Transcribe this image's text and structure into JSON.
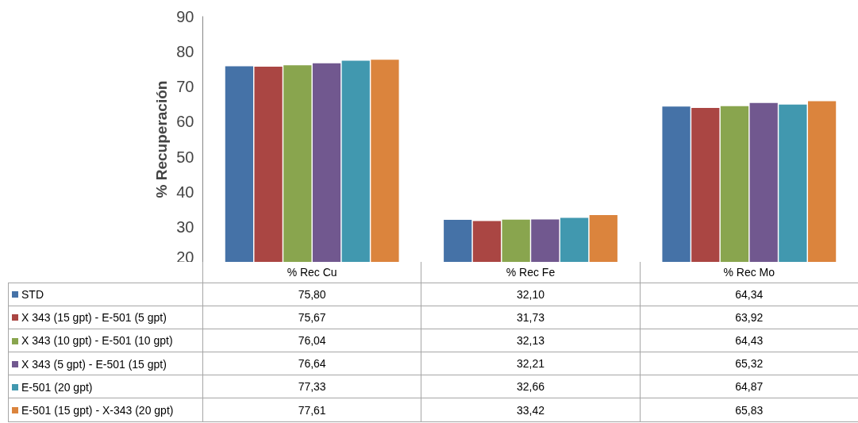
{
  "chart_data": {
    "type": "bar",
    "ylabel": "% Recuperación",
    "categories": [
      "% Rec Cu",
      "% Rec Fe",
      "% Rec Mo"
    ],
    "ylim": [
      20,
      90
    ],
    "yticks": [
      20,
      30,
      40,
      50,
      60,
      70,
      80,
      90
    ],
    "grid": false,
    "legend": "bottom",
    "data_labels": true,
    "series": [
      {
        "name": "STD",
        "color": "#4572a7",
        "values": [
          75.8,
          32.1,
          64.34
        ],
        "value_labels": [
          "75,80",
          "32,10",
          "64,34"
        ]
      },
      {
        "name": "X 343 (15 gpt) - E-501 (5 gpt)",
        "color": "#aa4643",
        "values": [
          75.67,
          31.73,
          63.92
        ],
        "value_labels": [
          "75,67",
          "31,73",
          "63,92"
        ]
      },
      {
        "name": "X 343 (10 gpt) - E-501 (10 gpt)",
        "color": "#89a54e",
        "values": [
          76.04,
          32.13,
          64.43
        ],
        "value_labels": [
          "76,04",
          "32,13",
          "64,43"
        ]
      },
      {
        "name": "X 343 (5 gpt) - E-501 (15 gpt)",
        "color": "#71588f",
        "values": [
          76.64,
          32.21,
          65.32
        ],
        "value_labels": [
          "76,64",
          "32,21",
          "65,32"
        ]
      },
      {
        "name": "E-501 (20 gpt)",
        "color": "#4198af",
        "values": [
          77.33,
          32.66,
          64.87
        ],
        "value_labels": [
          "77,33",
          "32,66",
          "64,87"
        ]
      },
      {
        "name": "E-501 (15 gpt) - X-343 (20 gpt)",
        "color": "#db843d",
        "values": [
          77.61,
          33.42,
          65.83
        ],
        "value_labels": [
          "77,61",
          "33,42",
          "65,83"
        ]
      }
    ]
  }
}
